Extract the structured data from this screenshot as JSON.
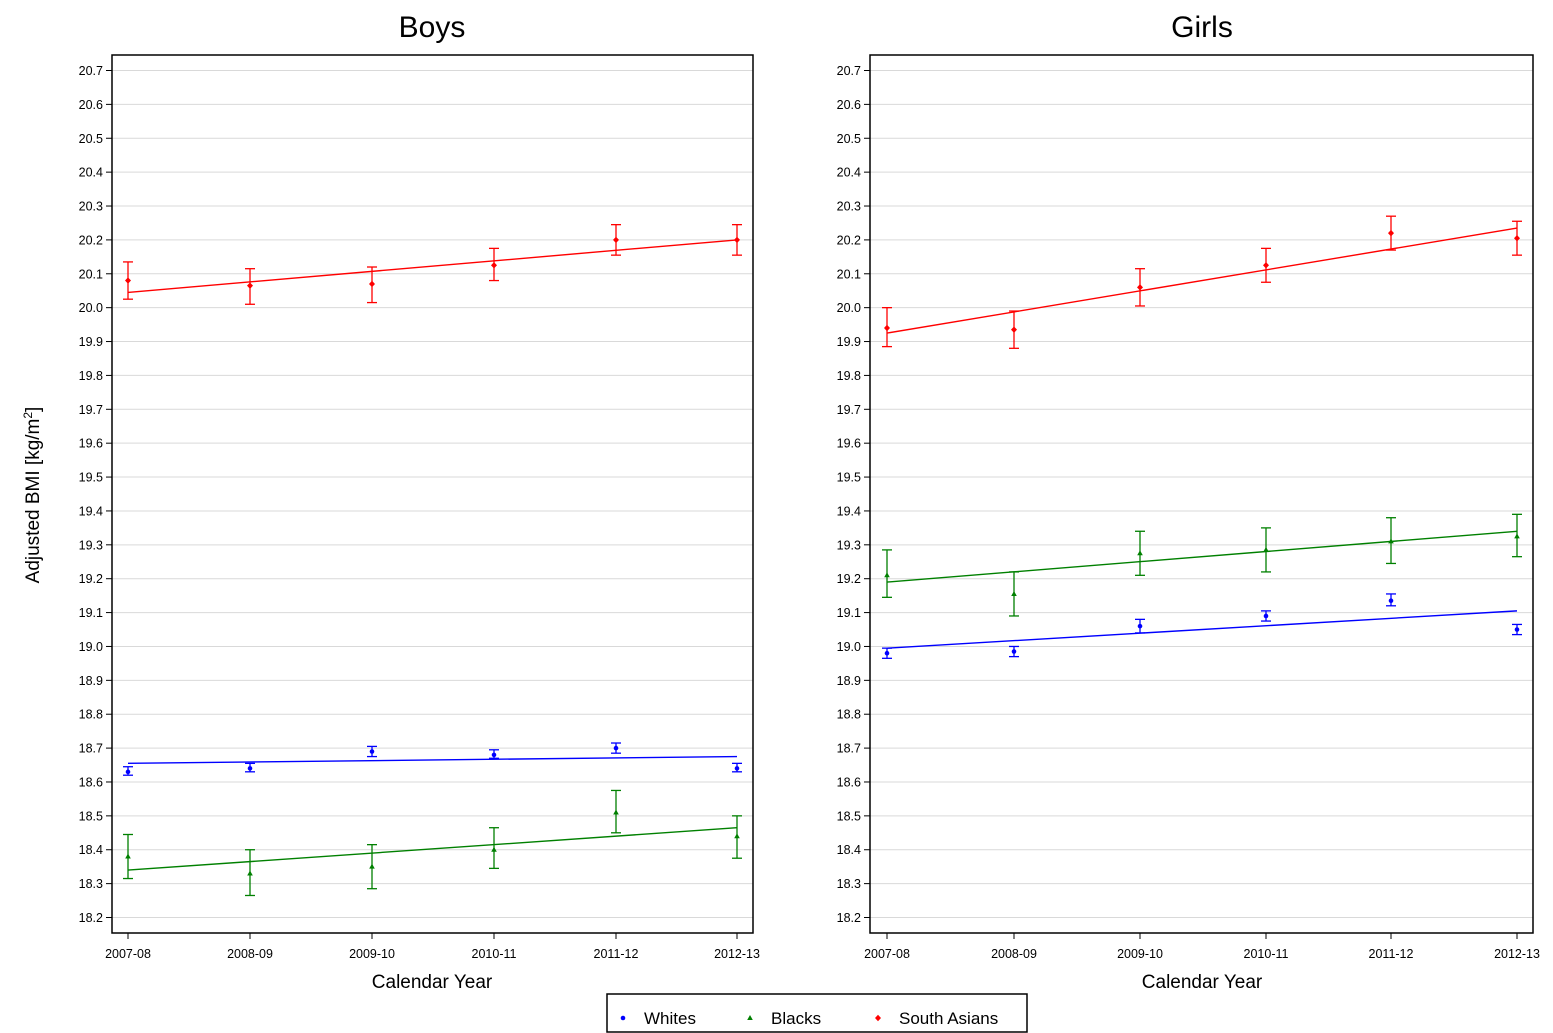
{
  "chart_data": {
    "type": "line",
    "ylabel": "Adjusted BMI [kg/m2]",
    "ylabel_base": "Adjusted BMI [kg/m",
    "ylabel_sup": "2",
    "ylabel_end": "]",
    "xlabel": "Calendar Year",
    "ylim": [
      18.15,
      20.75
    ],
    "yticks": [
      "18.2",
      "18.3",
      "18.4",
      "18.5",
      "18.6",
      "18.7",
      "18.8",
      "18.9",
      "19.0",
      "19.1",
      "19.2",
      "19.3",
      "19.4",
      "19.5",
      "19.6",
      "19.7",
      "19.8",
      "19.9",
      "20.0",
      "20.1",
      "20.2",
      "20.3",
      "20.4",
      "20.5",
      "20.6",
      "20.7"
    ],
    "categories": [
      "2007-08",
      "2008-09",
      "2009-10",
      "2010-11",
      "2011-12",
      "2012-13"
    ],
    "grid": true,
    "legend_position": "bottom-center",
    "legend": [
      {
        "name": "Whites",
        "color": "#0000ff",
        "marker": "circle"
      },
      {
        "name": "Blacks",
        "color": "#008000",
        "marker": "triangle"
      },
      {
        "name": "South Asians",
        "color": "#ff0000",
        "marker": "diamond"
      }
    ],
    "panels": [
      {
        "title": "Boys",
        "series": [
          {
            "name": "Whites",
            "color": "#0000ff",
            "points": [
              18.63,
              18.64,
              18.69,
              18.68,
              18.7,
              18.64
            ],
            "lower": [
              18.62,
              18.63,
              18.675,
              18.67,
              18.685,
              18.63
            ],
            "upper": [
              18.645,
              18.655,
              18.705,
              18.695,
              18.715,
              18.655
            ],
            "fit": [
              18.655,
              18.675
            ]
          },
          {
            "name": "Blacks",
            "color": "#008000",
            "points": [
              18.38,
              18.33,
              18.35,
              18.4,
              18.51,
              18.44
            ],
            "lower": [
              18.315,
              18.265,
              18.285,
              18.345,
              18.45,
              18.375
            ],
            "upper": [
              18.445,
              18.4,
              18.415,
              18.465,
              18.575,
              18.5
            ],
            "fit": [
              18.34,
              18.465
            ]
          },
          {
            "name": "South Asians",
            "color": "#ff0000",
            "points": [
              20.08,
              20.065,
              20.07,
              20.125,
              20.2,
              20.2
            ],
            "lower": [
              20.025,
              20.01,
              20.015,
              20.08,
              20.155,
              20.155
            ],
            "upper": [
              20.135,
              20.115,
              20.12,
              20.175,
              20.245,
              20.245
            ],
            "fit": [
              20.045,
              20.2
            ]
          }
        ]
      },
      {
        "title": "Girls",
        "series": [
          {
            "name": "Whites",
            "color": "#0000ff",
            "points": [
              18.98,
              18.985,
              19.06,
              19.09,
              19.135,
              19.05
            ],
            "lower": [
              18.965,
              18.97,
              19.04,
              19.075,
              19.12,
              19.035
            ],
            "upper": [
              18.995,
              19.0,
              19.08,
              19.105,
              19.155,
              19.065
            ],
            "fit": [
              18.995,
              19.105
            ]
          },
          {
            "name": "Blacks",
            "color": "#008000",
            "points": [
              19.21,
              19.155,
              19.275,
              19.285,
              19.31,
              19.325
            ],
            "lower": [
              19.145,
              19.09,
              19.21,
              19.22,
              19.245,
              19.265
            ],
            "upper": [
              19.285,
              19.22,
              19.34,
              19.35,
              19.38,
              19.39
            ],
            "fit": [
              19.19,
              19.34
            ]
          },
          {
            "name": "South Asians",
            "color": "#ff0000",
            "points": [
              19.94,
              19.935,
              20.06,
              20.125,
              20.22,
              20.205
            ],
            "lower": [
              19.885,
              19.88,
              20.005,
              20.075,
              20.17,
              20.155
            ],
            "upper": [
              20.0,
              19.99,
              20.115,
              20.175,
              20.27,
              20.255
            ],
            "fit": [
              19.925,
              20.235
            ]
          }
        ]
      }
    ]
  }
}
